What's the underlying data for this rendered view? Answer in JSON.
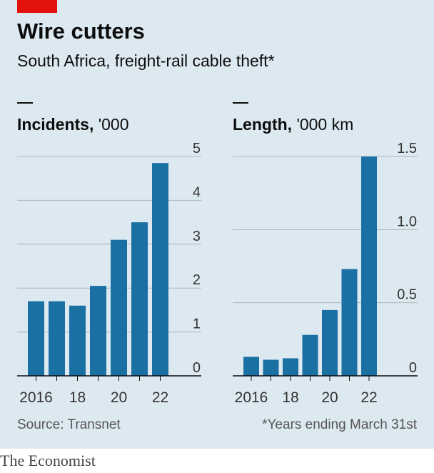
{
  "header": {
    "title": "Wire cutters",
    "subtitle": "South Africa, freight-rail cable theft*"
  },
  "footer": {
    "source": "Source: Transnet",
    "note": "*Years ending March 31st",
    "brand": "The Economist"
  },
  "colors": {
    "bar": "#1a6fa3",
    "background": "#dde9f1",
    "accent": "#e3120b",
    "gridline": "#aab6bd"
  },
  "chart_data": [
    {
      "type": "bar",
      "title": "Incidents,",
      "unit": "'000",
      "categories": [
        "2016",
        "2017",
        "2018",
        "2019",
        "2020",
        "2021",
        "2022"
      ],
      "tick_labels": [
        "2016",
        "",
        "18",
        "",
        "20",
        "",
        "22"
      ],
      "values": [
        1.7,
        1.7,
        1.6,
        2.05,
        3.1,
        3.5,
        4.85
      ],
      "ylim": [
        0,
        5
      ],
      "yticks": [
        0,
        1,
        2,
        3,
        4,
        5
      ],
      "ytick_labels": [
        "0",
        "1",
        "2",
        "3",
        "4",
        "5"
      ],
      "grid": true
    },
    {
      "type": "bar",
      "title": "Length,",
      "unit": "'000 km",
      "categories": [
        "2016",
        "2017",
        "2018",
        "2019",
        "2020",
        "2021",
        "2022"
      ],
      "tick_labels": [
        "2016",
        "",
        "18",
        "",
        "20",
        "",
        "22"
      ],
      "values": [
        0.13,
        0.11,
        0.12,
        0.28,
        0.45,
        0.73,
        1.5
      ],
      "ylim": [
        0,
        1.5
      ],
      "yticks": [
        0,
        0.5,
        1.0,
        1.5
      ],
      "ytick_labels": [
        "0",
        "0.5",
        "1.0",
        "1.5"
      ],
      "grid": true
    }
  ]
}
